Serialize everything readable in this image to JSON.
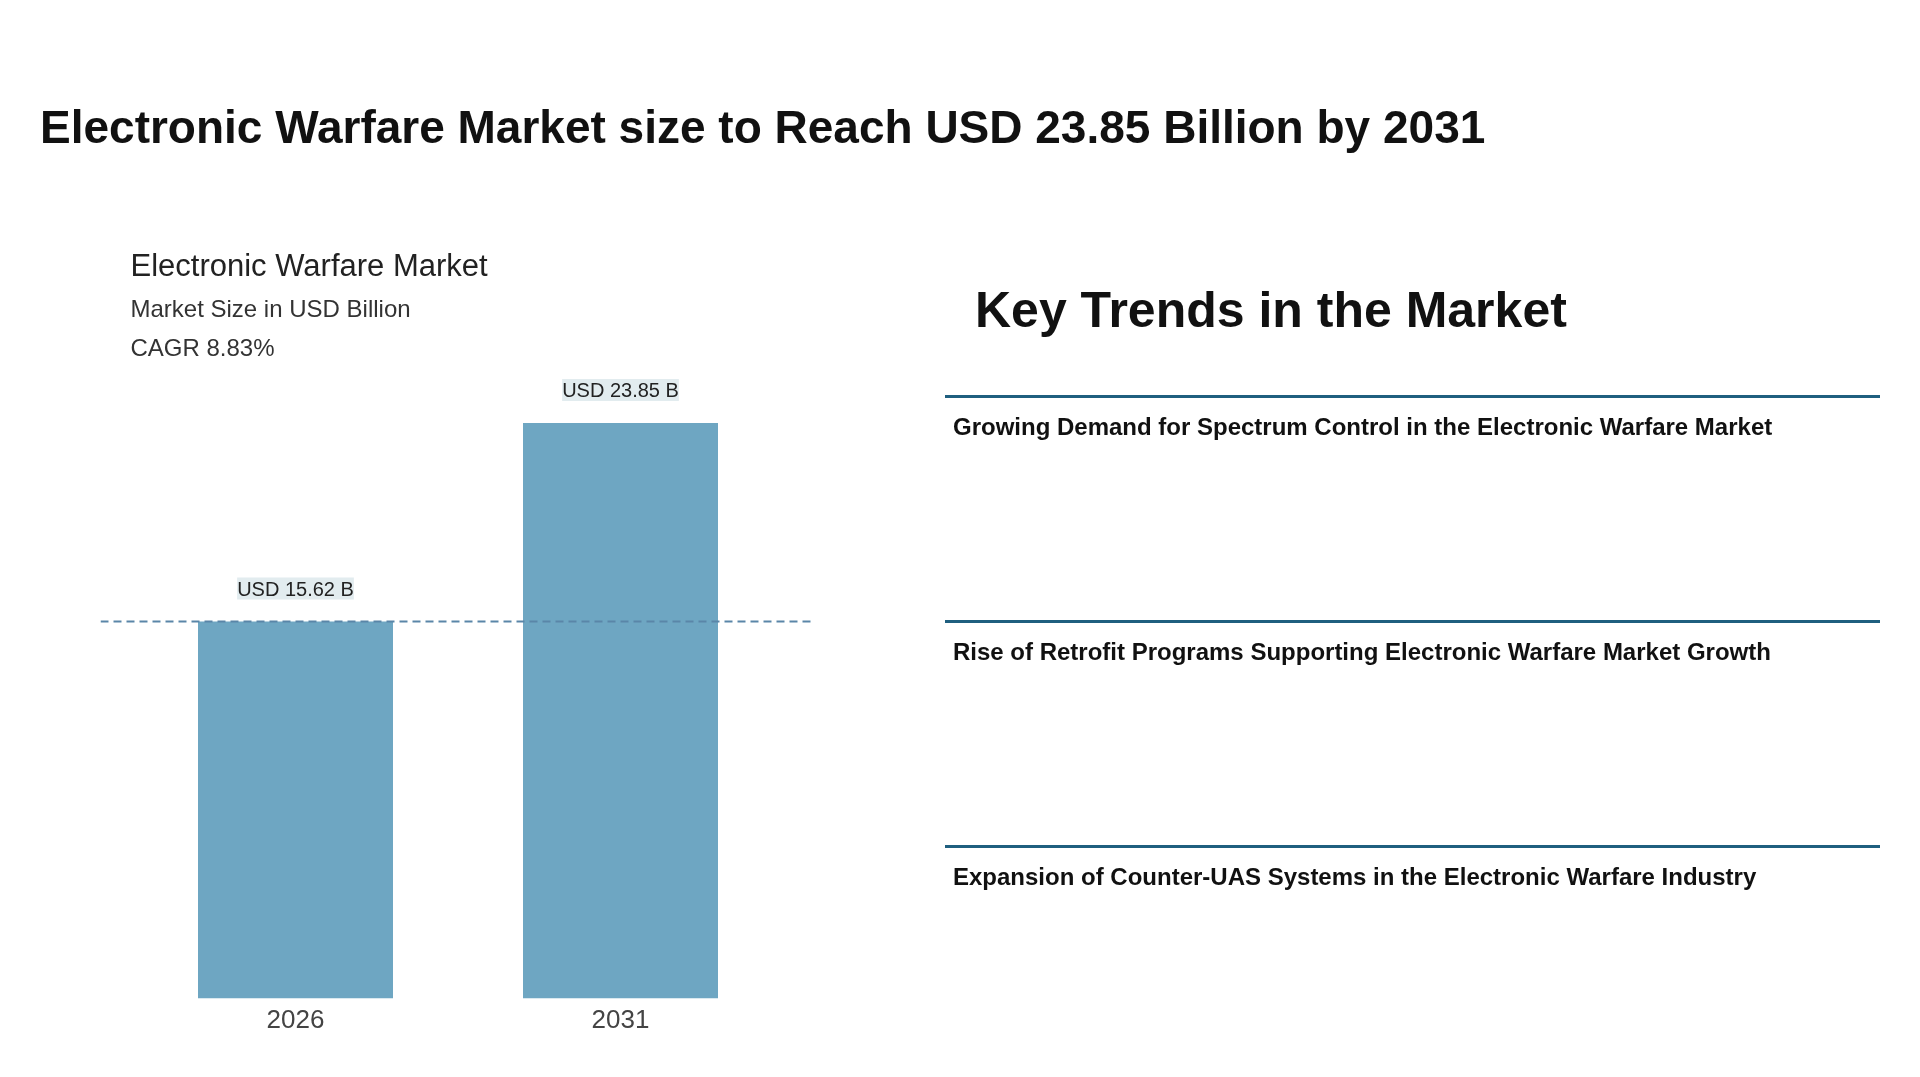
{
  "chart_data": {
    "type": "bar",
    "title": "Electronic Warfare Market",
    "subtitle": "Market Size in USD Billion",
    "categories": [
      "2026",
      "2031"
    ],
    "values": [
      15.62,
      23.85
    ],
    "value_labels": [
      "USD 15.62 B",
      "USD 23.85 B"
    ],
    "color": "#6ea6c2",
    "tick_labels": "x",
    "grid": false,
    "ref_lines": [
      {
        "axis": "y",
        "value": 15.62,
        "color": "#5a86a8",
        "line_style": "dashed"
      }
    ],
    "annotations": [
      "Electronic Warfare Market size to Reach USD 23.85 Billion by 2031",
      "CAGR 8.83%",
      "Key Trends in the Market",
      "Growing Demand for Spectrum Control in the Electronic Warfare Market",
      "Rise of Retrofit Programs Supporting Electronic Warfare Market Growth",
      "Expansion of Counter-UAS Systems in the Electronic Warfare Industry"
    ]
  }
}
